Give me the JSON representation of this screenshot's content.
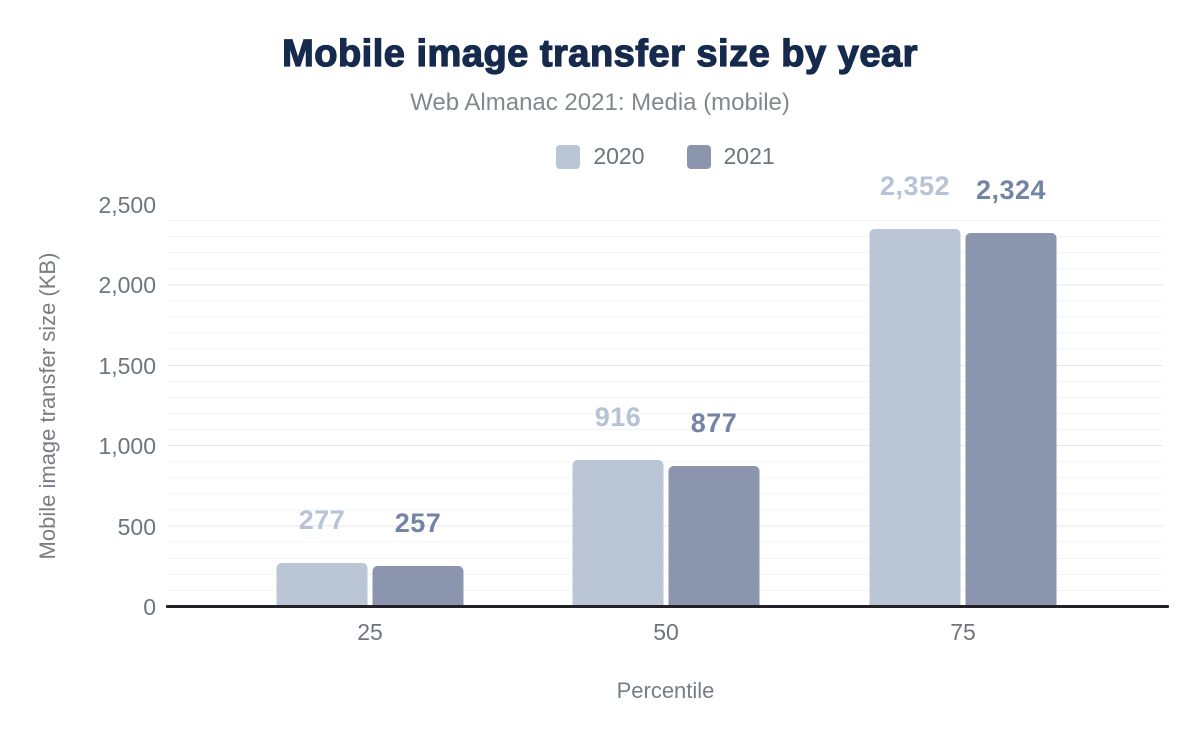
{
  "colors": {
    "title": "#162a4d",
    "subtitle": "#84878d",
    "axis_text": "#6e757f",
    "axis_title_text": "#787e86",
    "axis_line": "#212127",
    "major_gridline": "#e6e7ea",
    "minor_gridline": "#f3f4f6",
    "series_2020": "#bac5d5",
    "series_2021": "#8b96ae"
  },
  "chart_data": {
    "type": "bar",
    "title": "Mobile image transfer size by year",
    "subtitle": "Web Almanac 2021: Media (mobile)",
    "categories": [
      "25",
      "50",
      "75"
    ],
    "xlabel": "Percentile",
    "ylabel": "Mobile image transfer size (KB)",
    "ylim": [
      0,
      2500
    ],
    "ytick_step": 500,
    "minor_gridline_step": 100,
    "grid": true,
    "legend_position": "top-center",
    "yticks": [
      {
        "value": 0,
        "label": "0"
      },
      {
        "value": 500,
        "label": "500"
      },
      {
        "value": 1000,
        "label": "1,000"
      },
      {
        "value": 1500,
        "label": "1,500"
      },
      {
        "value": 2000,
        "label": "2,000"
      },
      {
        "value": 2500,
        "label": "2,500"
      }
    ],
    "series": [
      {
        "name": "2020",
        "color": "#bac5d5",
        "label_color": "#b7c3d6",
        "values": [
          277,
          916,
          2352
        ],
        "value_labels": [
          "277",
          "916",
          "2,352"
        ]
      },
      {
        "name": "2021",
        "color": "#8b96ae",
        "label_color": "#7484a4",
        "values": [
          257,
          877,
          2324
        ],
        "value_labels": [
          "257",
          "877",
          "2,324"
        ]
      }
    ]
  }
}
